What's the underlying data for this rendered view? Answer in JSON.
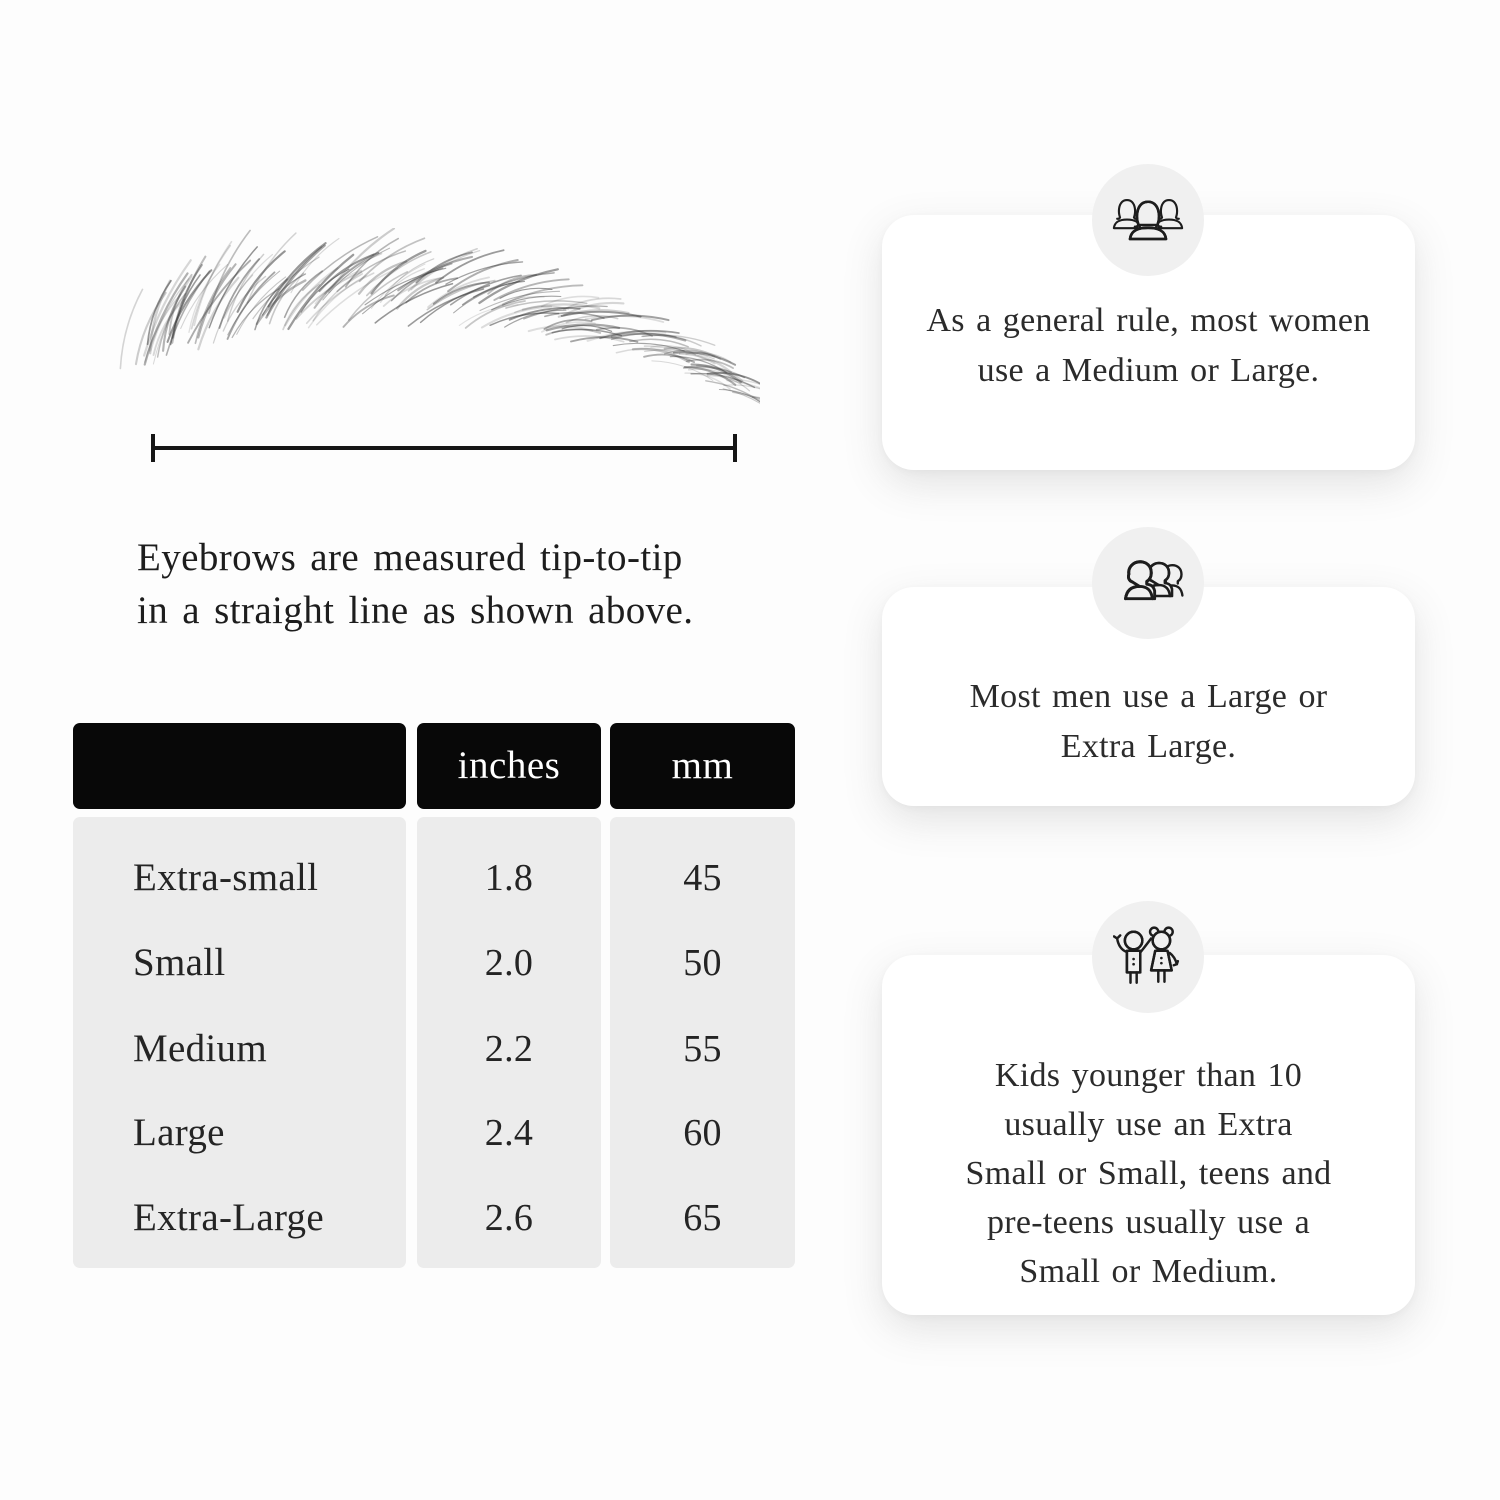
{
  "caption": {
    "line1": "Eyebrows are measured tip-to-tip",
    "line2": "in a straight line as shown above."
  },
  "table": {
    "headers": {
      "size": "",
      "inches": "inches",
      "mm": "mm"
    },
    "rows": [
      {
        "size": "Extra-small",
        "inches": "1.8",
        "mm": "45"
      },
      {
        "size": "Small",
        "inches": "2.0",
        "mm": "50"
      },
      {
        "size": "Medium",
        "inches": "2.2",
        "mm": "55"
      },
      {
        "size": "Large",
        "inches": "2.4",
        "mm": "60"
      },
      {
        "size": "Extra-Large",
        "inches": "2.6",
        "mm": "65"
      }
    ]
  },
  "cards": [
    {
      "icon": "women-group-icon",
      "lines": [
        "As a general rule, most women",
        "use a Medium or Large."
      ]
    },
    {
      "icon": "men-group-icon",
      "lines": [
        "Most men use a Large or",
        "Extra Large."
      ]
    },
    {
      "icon": "kids-icon",
      "lines": [
        "Kids younger than 10",
        "usually use an Extra",
        "Small or Small, teens and",
        "pre-teens usually use a",
        "Small or Medium."
      ]
    }
  ],
  "colors": {
    "page_bg": "#fdfdfd",
    "table_header_bg": "#080808",
    "table_header_text": "#ffffff",
    "table_body_bg": "#ececec",
    "card_bg": "#ffffff",
    "icon_circle_bg": "#f0f0f0",
    "ink": "#1c1c1c"
  }
}
